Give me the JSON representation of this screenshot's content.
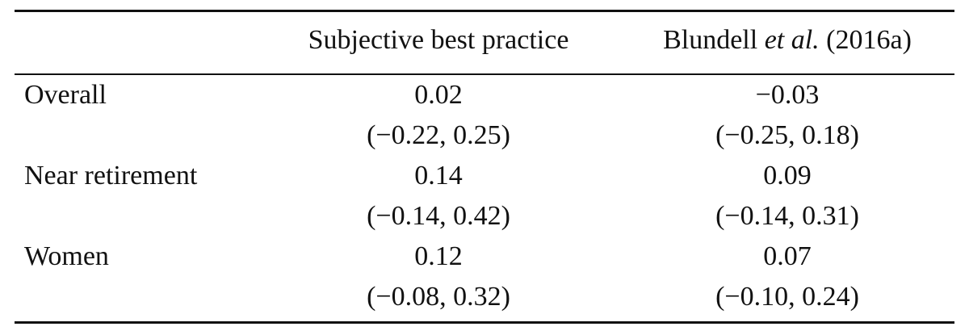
{
  "table": {
    "header": [
      "Subjective best practice",
      [
        "Blundell",
        "et al.",
        "(2016a)"
      ]
    ],
    "rows": [
      [
        "Overall",
        [
          "0.02",
          "(−0.22, 0.25)"
        ],
        [
          "−0.03",
          "(−0.25, 0.18)"
        ]
      ],
      [
        "Near retirement",
        [
          "0.14",
          "(−0.14, 0.42)"
        ],
        [
          "0.09",
          "(−0.14, 0.31)"
        ]
      ],
      [
        "Women",
        [
          "0.12",
          "(−0.08, 0.32)"
        ],
        [
          "0.07",
          "(−0.10, 0.24)"
        ]
      ]
    ]
  }
}
